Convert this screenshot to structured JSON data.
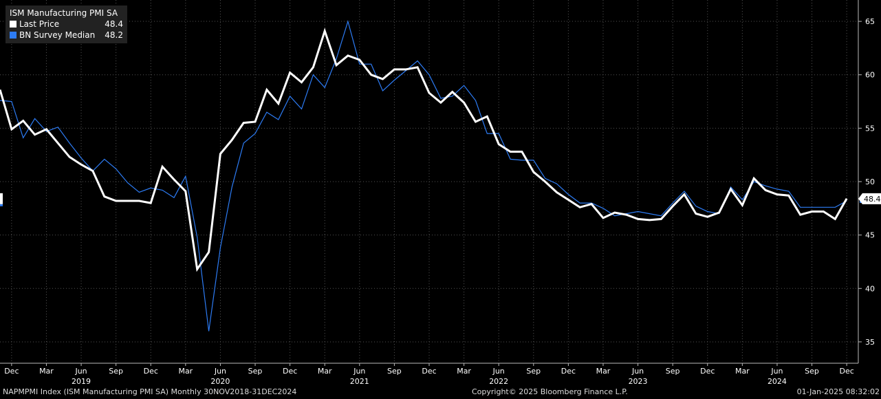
{
  "chart_data": {
    "type": "line",
    "title": "ISM Manufacturing PMI SA",
    "ylim": [
      33,
      67
    ],
    "y_ticks": [
      35,
      40,
      45,
      50,
      55,
      60,
      65
    ],
    "grid": true,
    "legend_position": "top-left",
    "x_range": [
      "2018-11",
      "2025-01"
    ],
    "x_month_ticks": [
      {
        "date": "2018-12",
        "label": "Dec"
      },
      {
        "date": "2019-03",
        "label": "Mar"
      },
      {
        "date": "2019-06",
        "label": "Jun"
      },
      {
        "date": "2019-09",
        "label": "Sep"
      },
      {
        "date": "2019-12",
        "label": "Dec"
      },
      {
        "date": "2020-03",
        "label": "Mar"
      },
      {
        "date": "2020-06",
        "label": "Jun"
      },
      {
        "date": "2020-09",
        "label": "Sep"
      },
      {
        "date": "2020-12",
        "label": "Dec"
      },
      {
        "date": "2021-03",
        "label": "Mar"
      },
      {
        "date": "2021-06",
        "label": "Jun"
      },
      {
        "date": "2021-09",
        "label": "Sep"
      },
      {
        "date": "2021-12",
        "label": "Dec"
      },
      {
        "date": "2022-03",
        "label": "Mar"
      },
      {
        "date": "2022-06",
        "label": "Jun"
      },
      {
        "date": "2022-09",
        "label": "Sep"
      },
      {
        "date": "2022-12",
        "label": "Dec"
      },
      {
        "date": "2023-03",
        "label": "Mar"
      },
      {
        "date": "2023-06",
        "label": "Jun"
      },
      {
        "date": "2023-09",
        "label": "Sep"
      },
      {
        "date": "2023-12",
        "label": "Dec"
      },
      {
        "date": "2024-03",
        "label": "Mar"
      },
      {
        "date": "2024-06",
        "label": "Jun"
      },
      {
        "date": "2024-09",
        "label": "Sep"
      },
      {
        "date": "2024-12",
        "label": "Dec"
      }
    ],
    "x_year_ticks": [
      {
        "date": "2019-06",
        "label": "2019"
      },
      {
        "date": "2020-06",
        "label": "2020"
      },
      {
        "date": "2021-06",
        "label": "2021"
      },
      {
        "date": "2022-06",
        "label": "2022"
      },
      {
        "date": "2023-06",
        "label": "2023"
      },
      {
        "date": "2024-06",
        "label": "2024"
      }
    ],
    "start_date": "2018-11",
    "series": [
      {
        "name": "Last Price",
        "color": "#ffffff",
        "last_value": "48.4",
        "values": [
          58.6,
          54.9,
          55.7,
          54.4,
          54.9,
          53.6,
          52.3,
          51.6,
          51.0,
          48.6,
          48.2,
          48.2,
          48.2,
          48.0,
          51.4,
          50.2,
          49.1,
          41.8,
          43.4,
          52.6,
          53.9,
          55.5,
          55.6,
          58.6,
          57.3,
          60.2,
          59.3,
          60.7,
          64.1,
          60.9,
          61.8,
          61.4,
          60.0,
          59.6,
          60.5,
          60.5,
          60.7,
          58.3,
          57.4,
          58.4,
          57.4,
          55.6,
          56.1,
          53.5,
          52.8,
          52.8,
          50.9,
          50.0,
          49.0,
          48.3,
          47.6,
          47.9,
          46.6,
          47.1,
          46.9,
          46.5,
          46.4,
          46.5,
          47.7,
          48.8,
          47.0,
          46.7,
          47.1,
          49.3,
          47.8,
          50.3,
          49.2,
          48.8,
          48.7,
          46.9,
          47.2,
          47.2,
          46.5,
          48.4
        ]
      },
      {
        "name": "BN Survey Median",
        "color": "#2d7cf5",
        "last_value": "48.2",
        "values": [
          57.6,
          57.5,
          54.1,
          55.9,
          54.7,
          55.1,
          53.6,
          52.2,
          51.0,
          52.1,
          51.2,
          49.9,
          49.0,
          49.4,
          49.2,
          48.5,
          50.5,
          44.8,
          36.0,
          43.8,
          49.5,
          53.6,
          54.5,
          56.5,
          55.8,
          58.0,
          56.8,
          60.0,
          58.8,
          61.5,
          65.0,
          61.0,
          61.0,
          58.5,
          59.5,
          60.4,
          61.3,
          60.0,
          57.8,
          58.0,
          59.0,
          57.6,
          54.5,
          54.5,
          52.1,
          52.0,
          52.0,
          50.3,
          49.8,
          48.8,
          48.0,
          48.0,
          47.5,
          46.8,
          47.0,
          47.2,
          47.0,
          46.8,
          48.0,
          49.1,
          47.7,
          47.2,
          47.0,
          49.5,
          48.3,
          50.0,
          49.6,
          49.3,
          49.1,
          47.6,
          47.6,
          47.6,
          47.6,
          48.2
        ]
      }
    ],
    "right_axis_badges": [
      "48.4"
    ],
    "left_edge_badge": "48"
  },
  "footer": {
    "left": "NAPMPMI Index (ISM Manufacturing PMI SA)  Monthly 30NOV2018-31DEC2024",
    "center": "Copyright© 2025 Bloomberg Finance L.P.",
    "right": "01-Jan-2025 08:32:02"
  }
}
